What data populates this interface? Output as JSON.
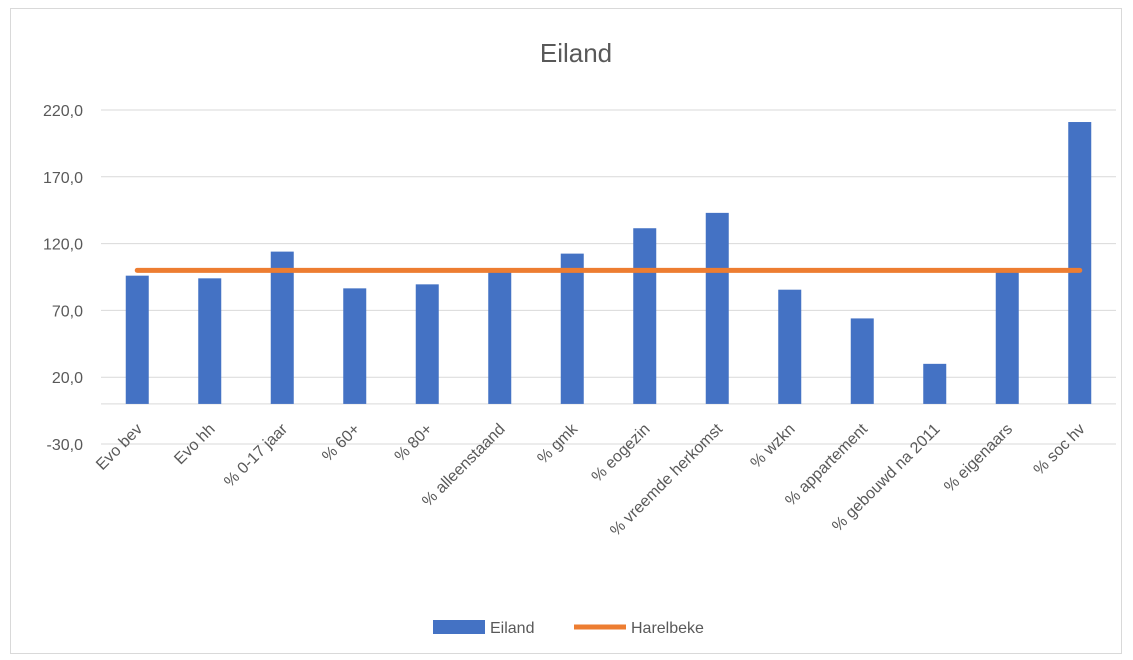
{
  "chart_data": {
    "type": "bar",
    "title": "Eiland",
    "categories": [
      "Evo bev",
      "Evo hh",
      "% 0-17 jaar",
      "% 60+",
      "% 80+",
      "% alleenstaand",
      "% gmk",
      "% eogezin",
      "% vreemde herkomst",
      "% wzkn",
      "% appartement",
      "% gebouwd na 2011",
      "% eigenaars",
      "% soc hv"
    ],
    "series": [
      {
        "name": "Eiland",
        "type": "bar",
        "color": "#4472C4",
        "values": [
          96.0,
          94.0,
          114.0,
          86.5,
          89.5,
          99.0,
          112.5,
          131.5,
          143.0,
          85.5,
          64.0,
          30.0,
          99.0,
          211.0
        ]
      },
      {
        "name": "Harelbeke",
        "type": "line",
        "color": "#ED7D31",
        "values": [
          100,
          100,
          100,
          100,
          100,
          100,
          100,
          100,
          100,
          100,
          100,
          100,
          100,
          100
        ]
      }
    ],
    "ylim": [
      -30,
      220
    ],
    "yticks": [
      "220,0",
      "170,0",
      "120,0",
      "70,0",
      "20,0",
      "-30,0"
    ],
    "ytick_values": [
      220,
      170,
      120,
      70,
      20,
      -30
    ],
    "grid": true,
    "legend_position": "bottom"
  }
}
